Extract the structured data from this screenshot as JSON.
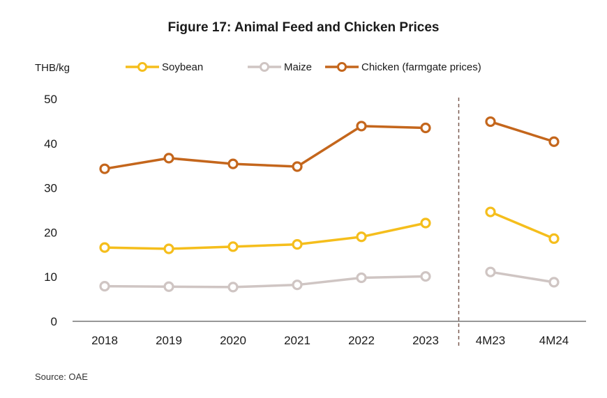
{
  "chart_data": {
    "type": "line",
    "title": "Figure 17: Animal Feed and Chicken Prices",
    "ylabel": "THB/kg",
    "xlabel": "",
    "ylim": [
      0,
      50
    ],
    "yticks": [
      0,
      10,
      20,
      30,
      40,
      50
    ],
    "categories": [
      "2018",
      "2019",
      "2020",
      "2021",
      "2022",
      "2023",
      "4M23",
      "4M24"
    ],
    "segments": [
      [
        0,
        5
      ],
      [
        6,
        7
      ]
    ],
    "separator_after_index": 5,
    "legend_position": "top",
    "grid": false,
    "series": [
      {
        "name": "Soybean",
        "color": "#f5be1c",
        "values": [
          16.6,
          16.3,
          16.8,
          17.3,
          19.0,
          22.1,
          24.6,
          18.6
        ]
      },
      {
        "name": "Maize",
        "color": "#cfc5c3",
        "values": [
          7.9,
          7.8,
          7.7,
          8.2,
          9.8,
          10.1,
          11.1,
          8.8
        ]
      },
      {
        "name": "Chicken (farmgate prices)",
        "color": "#c4661c",
        "values": [
          34.3,
          36.7,
          35.4,
          34.8,
          43.9,
          43.5,
          44.9,
          40.4
        ]
      }
    ]
  },
  "source": "Source: OAE",
  "colors": {
    "axis": "#595959",
    "separator": "#7a5a50"
  }
}
